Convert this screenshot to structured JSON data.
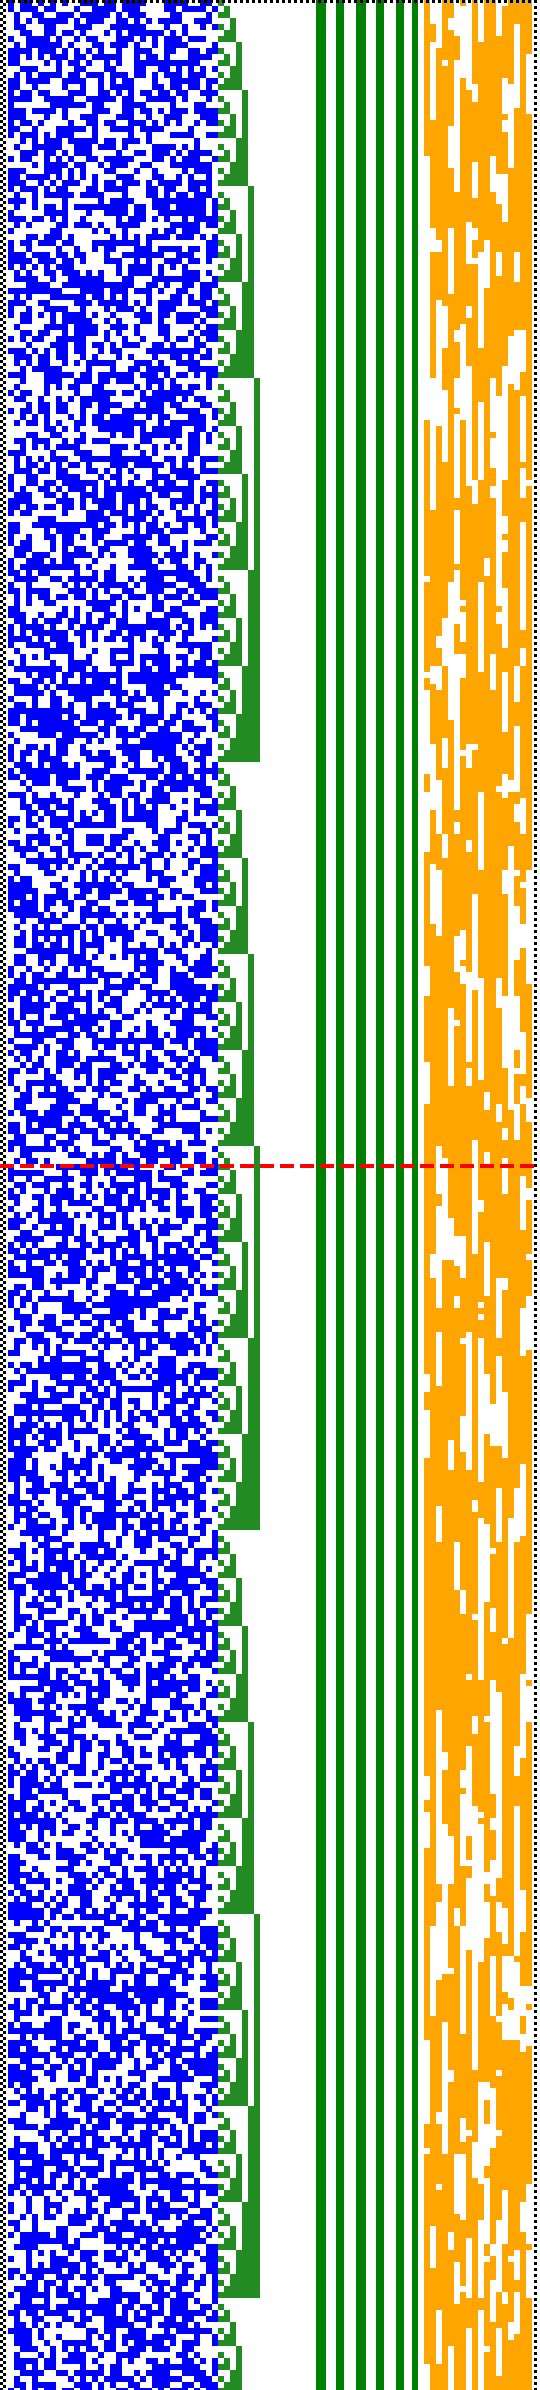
{
  "colors": {
    "background": "#ffffff",
    "border_dots": "#000000",
    "left_block": "#0000ff",
    "staircase": "#228b22",
    "stripes": "#008000",
    "right_block": "#ffa500",
    "separator": "#ff0000"
  },
  "panels": {
    "left_block": {
      "pattern": "dense-random-bits",
      "density": 0.55
    },
    "staircase": {
      "pattern": "binary-counter",
      "levels": 7
    },
    "stripes": {
      "pattern": "vertical-bars",
      "count": 6
    },
    "right_block": {
      "pattern": "vertically-correlated-bits",
      "density": 0.72
    },
    "separator": {
      "style": "dashed"
    }
  }
}
